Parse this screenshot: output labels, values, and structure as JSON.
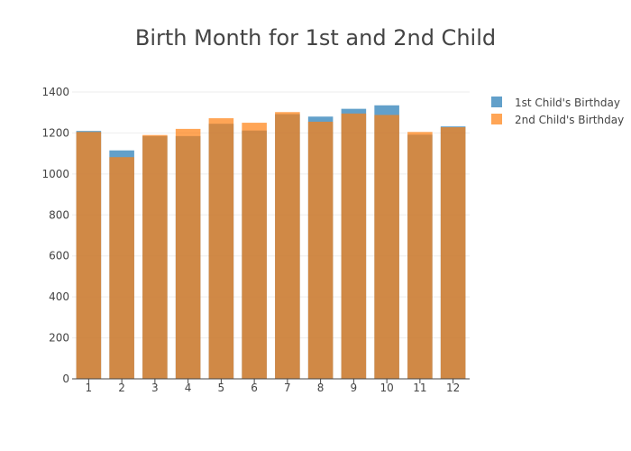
{
  "chart_data": {
    "type": "bar",
    "barmode": "overlay",
    "title": "Birth Month for 1st and 2nd Child",
    "xlabel": "",
    "ylabel": "",
    "categories": [
      "1",
      "2",
      "3",
      "4",
      "5",
      "6",
      "7",
      "8",
      "9",
      "10",
      "11",
      "12"
    ],
    "ylim": [
      0,
      1400
    ],
    "yticks": [
      0,
      200,
      400,
      600,
      800,
      1000,
      1200,
      1400
    ],
    "grid": true,
    "legend_position": "top-right",
    "series": [
      {
        "name": "1st Child's Birthday",
        "color": "#1f77b4",
        "values": [
          1210,
          1115,
          1185,
          1185,
          1245,
          1212,
          1292,
          1280,
          1318,
          1335,
          1192,
          1232
        ]
      },
      {
        "name": "2nd Child's Birthday",
        "color": "#ff7f0e",
        "values": [
          1205,
          1082,
          1190,
          1220,
          1272,
          1250,
          1302,
          1255,
          1295,
          1288,
          1205,
          1228
        ]
      }
    ]
  }
}
